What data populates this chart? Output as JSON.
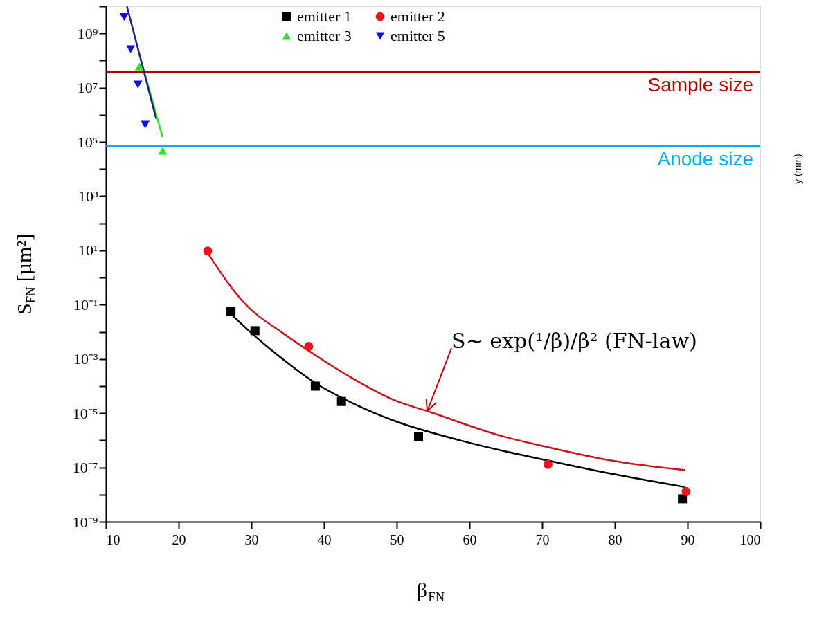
{
  "chart_data": {
    "type": "scatter",
    "xlabel": "β$_{FN}$",
    "ylabel": "S$_{FN}$ [µm²]",
    "xlim": [
      10,
      100
    ],
    "ylim": [
      1e-09,
      10000000000.0
    ],
    "log": "y",
    "xticks": [
      10,
      20,
      30,
      40,
      50,
      60,
      70,
      80,
      90,
      100
    ],
    "yticks": [
      {
        "value": 1e-09,
        "label": "10⁻⁹"
      },
      {
        "value": 1e-08,
        "label": null
      },
      {
        "value": 1e-07,
        "label": "10⁻⁷"
      },
      {
        "value": 1e-06,
        "label": null
      },
      {
        "value": 1e-05,
        "label": "10⁻⁵"
      },
      {
        "value": 0.0001,
        "label": null
      },
      {
        "value": 0.001,
        "label": "10⁻³"
      },
      {
        "value": 0.01,
        "label": null
      },
      {
        "value": 0.1,
        "label": "10⁻¹"
      },
      {
        "value": 1,
        "label": null
      },
      {
        "value": 10,
        "label": "10¹"
      },
      {
        "value": 100,
        "label": null
      },
      {
        "value": 1000,
        "label": "10³"
      },
      {
        "value": 10000.0,
        "label": null
      },
      {
        "value": 100000.0,
        "label": "10⁵"
      },
      {
        "value": 1000000.0,
        "label": null
      },
      {
        "value": 10000000.0,
        "label": "10⁷"
      },
      {
        "value": 100000000.0,
        "label": null
      },
      {
        "value": 1000000000.0,
        "label": "10⁹"
      },
      {
        "value": 10000000000.0,
        "label": null
      }
    ],
    "grid": false,
    "legend": "top",
    "series": [
      {
        "type": "line",
        "color": "#000000",
        "marker": "none",
        "x": [
          27.4,
          30.5,
          34.3,
          38.8,
          42.9,
          49.7,
          58.7,
          64.6,
          70.8,
          79.5,
          89.6
        ],
        "values": [
          0.04,
          0.0069,
          0.001,
          0.00013,
          3.2e-05,
          5.2e-06,
          1e-06,
          4.1e-07,
          1.8e-07,
          5.9e-08,
          1.9e-08
        ]
      },
      {
        "type": "line",
        "color": "#c8161d",
        "marker": "none",
        "x": [
          24.0,
          29.1,
          34.3,
          37.9,
          42.9,
          49.7,
          54.6,
          64.6,
          70.8,
          79.5,
          89.7
        ],
        "values": [
          7.9,
          0.11,
          0.0091,
          0.002,
          0.00028,
          3e-05,
          1.1e-05,
          1.4e-06,
          5.6e-07,
          1.8e-07,
          7.9e-08
        ]
      },
      {
        "type": "line",
        "color": "#33dd33",
        "marker": "none",
        "x": [
          14.6,
          17.8
        ],
        "values": [
          170000000.0,
          150000.0
        ]
      },
      {
        "type": "line",
        "color": "#1a237e",
        "marker": "none",
        "x": [
          12.9,
          16.9
        ],
        "values": [
          9800000000.0,
          720000.0
        ]
      },
      {
        "name": "emitter 1",
        "color": "#000000",
        "marker": "square",
        "x": [
          27.2,
          30.5,
          38.8,
          42.4,
          53.0,
          89.3
        ],
        "values": [
          0.056,
          0.011,
          0.0001,
          2.7e-05,
          1.4e-06,
          7e-09
        ]
      },
      {
        "name": "emitter 2",
        "color": "#e8141b",
        "marker": "circle",
        "x": [
          24.0,
          37.9,
          70.8,
          89.8
        ],
        "values": [
          9.5,
          0.0029,
          1.3e-07,
          1.3e-08
        ]
      },
      {
        "name": "emitter 3",
        "color": "#33dd33",
        "marker": "triangle",
        "x": [
          14.6,
          17.8
        ],
        "values": [
          60000000.0,
          47000.0
        ]
      },
      {
        "name": "emitter 5",
        "color": "#1010e0",
        "marker": "triangle-down",
        "x": [
          12.5,
          13.4,
          14.4,
          15.4
        ],
        "values": [
          4000000000.0,
          260000000.0,
          13000000.0,
          430000.0
        ]
      }
    ],
    "ref_lines": [
      {
        "axis": "y",
        "value": 38000000.0,
        "label": "Sample size",
        "color": "#c00000"
      },
      {
        "axis": "y",
        "value": 70000.0,
        "label": "Anode size",
        "color": "#00b0f0"
      }
    ],
    "annotations": [
      {
        "text": "S∼ exp(¹/β)/β² (FN-law)",
        "x": 54.2,
        "y": 1.2e-05
      },
      "y (mm)"
    ]
  }
}
